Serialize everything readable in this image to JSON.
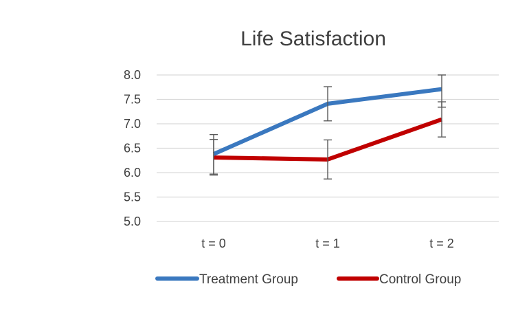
{
  "chart_data": {
    "type": "line",
    "title": "Life Satisfaction",
    "categories": [
      "t = 0",
      "t = 1",
      "t = 2"
    ],
    "ylim": [
      5.0,
      8.0
    ],
    "yticks": [
      "5.0",
      "5.5",
      "6.0",
      "6.5",
      "7.0",
      "7.5",
      "8.0"
    ],
    "grid": true,
    "legend_position": "bottom",
    "series": [
      {
        "name": "Treatment Group",
        "color": "#3a78bf",
        "values": [
          6.38,
          7.41,
          7.71
        ],
        "error_low": [
          5.97,
          7.06,
          7.34
        ],
        "error_high": [
          6.78,
          7.76,
          8.0
        ]
      },
      {
        "name": "Control Group",
        "color": "#c00000",
        "values": [
          6.31,
          6.27,
          7.09
        ],
        "error_low": [
          5.95,
          5.87,
          6.73
        ],
        "error_high": [
          6.68,
          6.67,
          7.45
        ]
      }
    ]
  }
}
